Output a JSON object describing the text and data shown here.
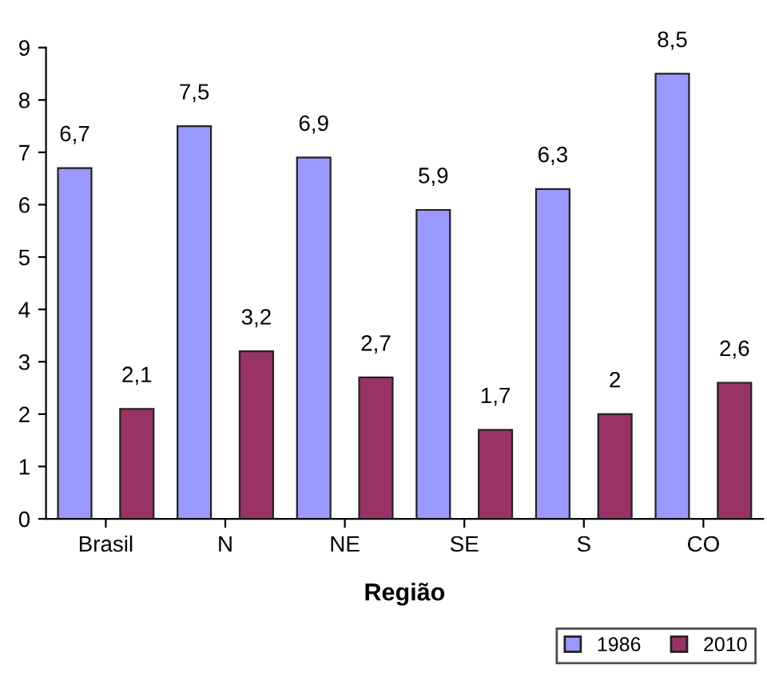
{
  "chart_data": {
    "type": "bar",
    "xlabel": "Região",
    "categories": [
      "Brasil",
      "N",
      "NE",
      "SE",
      "S",
      "CO"
    ],
    "series": [
      {
        "name": "1986",
        "color": "#9999ff",
        "values": [
          6.7,
          7.5,
          6.9,
          5.9,
          6.3,
          8.5
        ],
        "value_labels": [
          "6,7",
          "7,5",
          "6,9",
          "5,9",
          "6,3",
          "8,5"
        ]
      },
      {
        "name": "2010",
        "color": "#993366",
        "values": [
          2.1,
          3.2,
          2.7,
          1.7,
          2.0,
          2.6
        ],
        "value_labels": [
          "2,1",
          "3,2",
          "2,7",
          "1,7",
          "2",
          "2,6"
        ]
      }
    ],
    "ylim": [
      0,
      9
    ],
    "yticks": [
      0,
      1,
      2,
      3,
      4,
      5,
      6,
      7,
      8,
      9
    ],
    "grid": false,
    "legend": "bottom right"
  }
}
